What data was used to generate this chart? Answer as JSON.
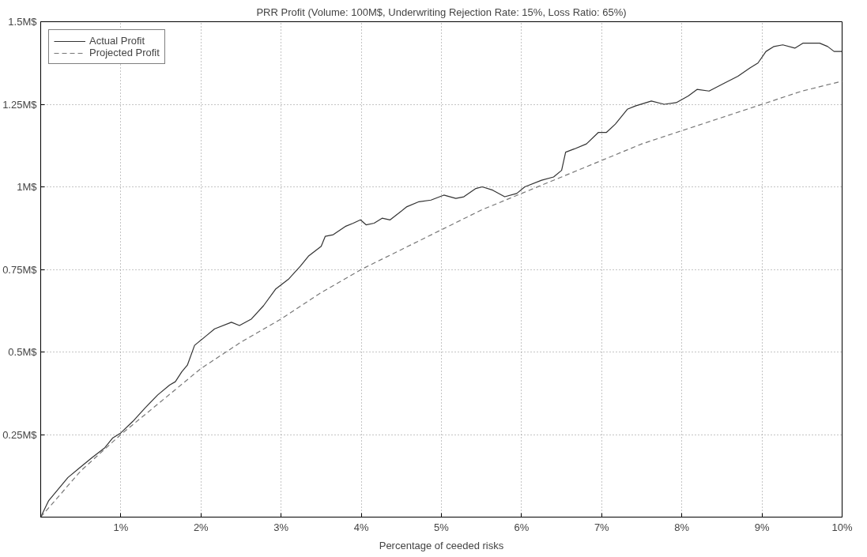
{
  "chart_data": {
    "type": "line",
    "title": "PRR Profit (Volume: 100M$, Underwriting Rejection Rate: 15%, Loss Ratio: 65%)",
    "xlabel": "Percentage of ceeded risks",
    "xlim": [
      0,
      10
    ],
    "ylim": [
      0,
      1.5
    ],
    "xticks": [
      {
        "value": 1,
        "label": "1%"
      },
      {
        "value": 2,
        "label": "2%"
      },
      {
        "value": 3,
        "label": "3%"
      },
      {
        "value": 4,
        "label": "4%"
      },
      {
        "value": 5,
        "label": "5%"
      },
      {
        "value": 6,
        "label": "6%"
      },
      {
        "value": 7,
        "label": "7%"
      },
      {
        "value": 8,
        "label": "8%"
      },
      {
        "value": 9,
        "label": "9%"
      },
      {
        "value": 10,
        "label": "10%"
      }
    ],
    "yticks": [
      {
        "value": 0.25,
        "label": "0.25M$"
      },
      {
        "value": 0.5,
        "label": "0.5M$"
      },
      {
        "value": 0.75,
        "label": "0.75M$"
      },
      {
        "value": 1,
        "label": "1M$"
      },
      {
        "value": 1.25,
        "label": "1.25M$"
      },
      {
        "value": 1.5,
        "label": "1.5M$"
      }
    ],
    "grid": true,
    "legend": "top left",
    "marker": "none",
    "series": [
      {
        "name": "Actual Profit",
        "color": "#333333",
        "line_style": "solid",
        "x": [
          0,
          0.1,
          0.34,
          0.49,
          0.64,
          0.8,
          0.9,
          1.0,
          1.15,
          1.3,
          1.46,
          1.61,
          1.68,
          1.76,
          1.83,
          1.92,
          2.07,
          2.17,
          2.38,
          2.48,
          2.63,
          2.78,
          2.93,
          3.09,
          3.24,
          3.34,
          3.5,
          3.55,
          3.65,
          3.8,
          3.9,
          3.99,
          4.06,
          4.16,
          4.26,
          4.36,
          4.57,
          4.72,
          4.87,
          5.03,
          5.18,
          5.28,
          5.43,
          5.51,
          5.64,
          5.79,
          5.94,
          6.04,
          6.25,
          6.4,
          6.5,
          6.55,
          6.66,
          6.81,
          6.96,
          7.06,
          7.17,
          7.32,
          7.42,
          7.62,
          7.78,
          7.93,
          8.08,
          8.19,
          8.34,
          8.54,
          8.7,
          8.85,
          8.95,
          9.05,
          9.15,
          9.26,
          9.41,
          9.51,
          9.72,
          9.82,
          9.9,
          10
        ],
        "values": [
          0,
          0.05,
          0.12,
          0.15,
          0.18,
          0.21,
          0.24,
          0.255,
          0.29,
          0.33,
          0.37,
          0.4,
          0.41,
          0.44,
          0.46,
          0.52,
          0.55,
          0.57,
          0.59,
          0.58,
          0.6,
          0.64,
          0.69,
          0.72,
          0.76,
          0.79,
          0.82,
          0.85,
          0.855,
          0.88,
          0.89,
          0.9,
          0.885,
          0.89,
          0.905,
          0.9,
          0.94,
          0.955,
          0.96,
          0.975,
          0.965,
          0.97,
          0.995,
          1.0,
          0.99,
          0.97,
          0.98,
          1.0,
          1.02,
          1.03,
          1.05,
          1.105,
          1.115,
          1.13,
          1.165,
          1.165,
          1.19,
          1.235,
          1.245,
          1.26,
          1.25,
          1.255,
          1.275,
          1.295,
          1.29,
          1.315,
          1.335,
          1.36,
          1.375,
          1.41,
          1.425,
          1.43,
          1.42,
          1.435,
          1.435,
          1.425,
          1.41,
          1.41
        ]
      },
      {
        "name": "Projected Profit",
        "color": "#777777",
        "line_style": "dashed",
        "x": [
          0,
          0.5,
          1,
          1.5,
          2,
          2.5,
          3,
          3.5,
          4,
          4.5,
          5,
          5.5,
          6,
          6.5,
          7,
          7.5,
          8,
          8.5,
          9,
          9.5,
          10
        ],
        "values": [
          0,
          0.14,
          0.25,
          0.35,
          0.45,
          0.53,
          0.6,
          0.68,
          0.75,
          0.81,
          0.87,
          0.93,
          0.98,
          1.03,
          1.08,
          1.13,
          1.17,
          1.21,
          1.25,
          1.29,
          1.32
        ]
      }
    ]
  }
}
